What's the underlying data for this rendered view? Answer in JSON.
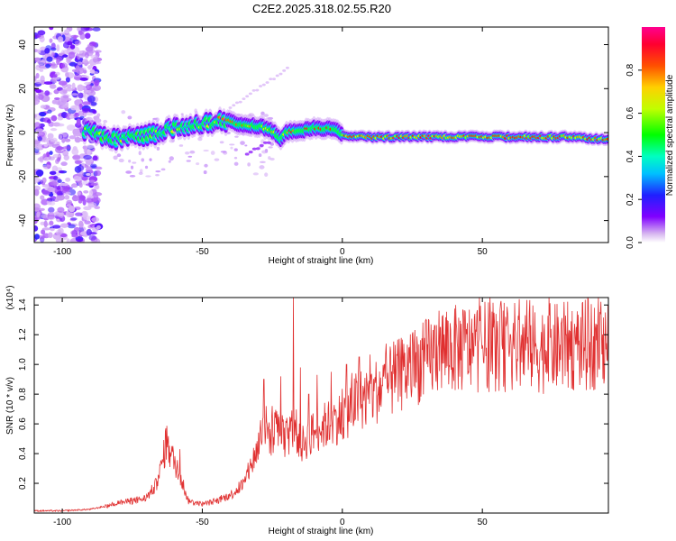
{
  "title": "C2E2.2025.318.02.55.R20",
  "chart_data": [
    {
      "type": "heatmap",
      "name": "spectrogram",
      "xlabel": "Height of straight line (km)",
      "ylabel": "Frequency (Hz)",
      "xlim": [
        -110,
        95
      ],
      "ylim": [
        -50,
        48
      ],
      "xticks": [
        "-100",
        "-50",
        "0",
        "50"
      ],
      "yticks": [
        "40",
        "20",
        "0",
        "-20",
        "-40"
      ],
      "colorbar": {
        "label": "Normalized spectral amplitude",
        "ticks": [
          "0.0",
          "0.2",
          "0.4",
          "0.6",
          "0.8"
        ],
        "range": [
          0,
          1
        ]
      },
      "ridge": [
        [
          -90,
          0.5
        ],
        [
          -85,
          -2
        ],
        [
          -80,
          -3
        ],
        [
          -75,
          -2
        ],
        [
          -70,
          -1
        ],
        [
          -65,
          0
        ],
        [
          -60,
          2
        ],
        [
          -55,
          3
        ],
        [
          -50,
          4
        ],
        [
          -45,
          5
        ],
        [
          -40,
          5
        ],
        [
          -35,
          3
        ],
        [
          -30,
          3
        ],
        [
          -25,
          1
        ],
        [
          -22,
          -3
        ],
        [
          -20,
          0
        ],
        [
          -15,
          1
        ],
        [
          -10,
          2
        ],
        [
          -5,
          2
        ],
        [
          -2,
          2
        ],
        [
          0,
          -1
        ],
        [
          5,
          -2
        ],
        [
          20,
          -2
        ],
        [
          40,
          -2
        ],
        [
          60,
          -2
        ],
        [
          80,
          -2
        ],
        [
          95,
          -3
        ]
      ]
    },
    {
      "type": "line",
      "name": "snr",
      "xlabel": "Height of straight line (km)",
      "ylabel": "SNR (10 * v/v)",
      "y_multiplier": "(x10⁴)",
      "xlim": [
        -110,
        95
      ],
      "ylim": [
        0,
        1.45
      ],
      "xticks": [
        "-100",
        "-50",
        "0",
        "50"
      ],
      "yticks": [
        "1.4",
        "1.2",
        "1.0",
        "0.8",
        "0.6",
        "0.4",
        "0.2"
      ],
      "color": "#e03030",
      "envelope": [
        [
          -110,
          0.01
        ],
        [
          -100,
          0.01
        ],
        [
          -90,
          0.02
        ],
        [
          -85,
          0.04
        ],
        [
          -80,
          0.07
        ],
        [
          -75,
          0.08
        ],
        [
          -70,
          0.1
        ],
        [
          -66,
          0.2
        ],
        [
          -63,
          0.45
        ],
        [
          -60,
          0.35
        ],
        [
          -57,
          0.2
        ],
        [
          -55,
          0.08
        ],
        [
          -50,
          0.06
        ],
        [
          -45,
          0.08
        ],
        [
          -40,
          0.12
        ],
        [
          -35,
          0.2
        ],
        [
          -33,
          0.3
        ],
        [
          -30,
          0.45
        ],
        [
          -28,
          0.6
        ],
        [
          -25,
          0.5
        ],
        [
          -22,
          0.55
        ],
        [
          -20,
          0.5
        ],
        [
          -17,
          0.6
        ],
        [
          -15,
          0.45
        ],
        [
          -10,
          0.55
        ],
        [
          -5,
          0.6
        ],
        [
          0,
          0.65
        ],
        [
          5,
          0.75
        ],
        [
          10,
          0.8
        ],
        [
          15,
          0.85
        ],
        [
          20,
          0.92
        ],
        [
          25,
          0.98
        ],
        [
          30,
          1.03
        ],
        [
          35,
          1.1
        ],
        [
          40,
          1.1
        ],
        [
          50,
          1.12
        ],
        [
          60,
          1.12
        ],
        [
          70,
          1.1
        ],
        [
          80,
          1.12
        ],
        [
          90,
          1.13
        ],
        [
          95,
          1.15
        ]
      ],
      "peaks": [
        [
          -63,
          0.57
        ],
        [
          -58,
          0.43
        ],
        [
          -28,
          0.9
        ],
        [
          -25,
          0.72
        ],
        [
          -22,
          0.92
        ],
        [
          -17.5,
          1.45
        ],
        [
          -15,
          0.98
        ],
        [
          -12,
          0.8
        ],
        [
          -9,
          0.93
        ],
        [
          -4,
          0.95
        ],
        [
          1.5,
          1.0
        ],
        [
          6,
          1.05
        ],
        [
          15,
          1.0
        ],
        [
          35,
          1.25
        ],
        [
          40,
          1.22
        ],
        [
          46,
          1.22
        ],
        [
          60,
          1.2
        ],
        [
          80,
          1.2
        ],
        [
          94,
          1.35
        ]
      ]
    }
  ]
}
